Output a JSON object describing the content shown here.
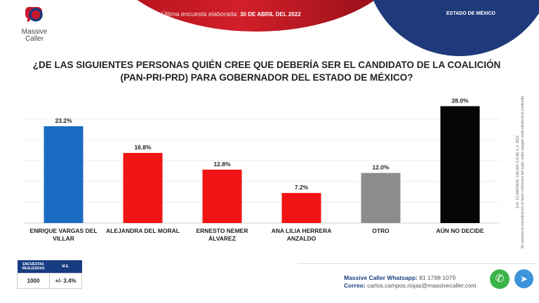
{
  "header": {
    "date_label": "Última encuesta elaborada:",
    "date_value": "30 DE ABRIL DEL 2022",
    "region": "ESTADO DE MÉXICO"
  },
  "logo": {
    "line1": "Massive",
    "line2": "Caller"
  },
  "side_note": {
    "line1": "D.R. (C) MASSIVE CALLER S.A DE C.V. 2022",
    "line2": "Se autoriza la reproducción al hacer referencia del autor, salvo apague veda electoral al contenido."
  },
  "stats": {
    "h1": "ENCUESTAS REALIZADAS",
    "h2": "M.E.",
    "v1": "1000",
    "v2": "+/- 3.4%"
  },
  "contact": {
    "wa_label": "Massive Caller Whatsapp:",
    "wa_value": "81 1798 1079",
    "mail_label": "Correo:",
    "mail_value": "carlos.campos.riojas@massivecaller.com"
  },
  "chart_data": {
    "type": "bar",
    "title": "¿DE LAS SIGUIENTES PERSONAS QUIÉN CREE QUE DEBERÍA SER EL CANDIDATO DE LA COALICIÓN (PAN-PRI-PRD) PARA GOBERNADOR DEL ESTADO DE MÉXICO?",
    "categories": [
      "ENRIQUE VARGAS DEL VILLAR",
      "ALEJANDRA DEL MORAL",
      "ERNESTO NEMER ÁLVAREZ",
      "ANA LILIA HERRERA ANZALDO",
      "OTRO",
      "AÚN NO DECIDE"
    ],
    "values": [
      23.2,
      16.8,
      12.8,
      7.2,
      12.0,
      28.0
    ],
    "labels": [
      "23.2%",
      "16.8%",
      "12.8%",
      "7.2%",
      "12.0%",
      "28.0%"
    ],
    "colors": [
      "#1a6cc2",
      "#f01414",
      "#f01414",
      "#f01414",
      "#8c8c8c",
      "#050505"
    ],
    "ylim": [
      0,
      30
    ],
    "grid": true,
    "xlabel": "",
    "ylabel": ""
  }
}
